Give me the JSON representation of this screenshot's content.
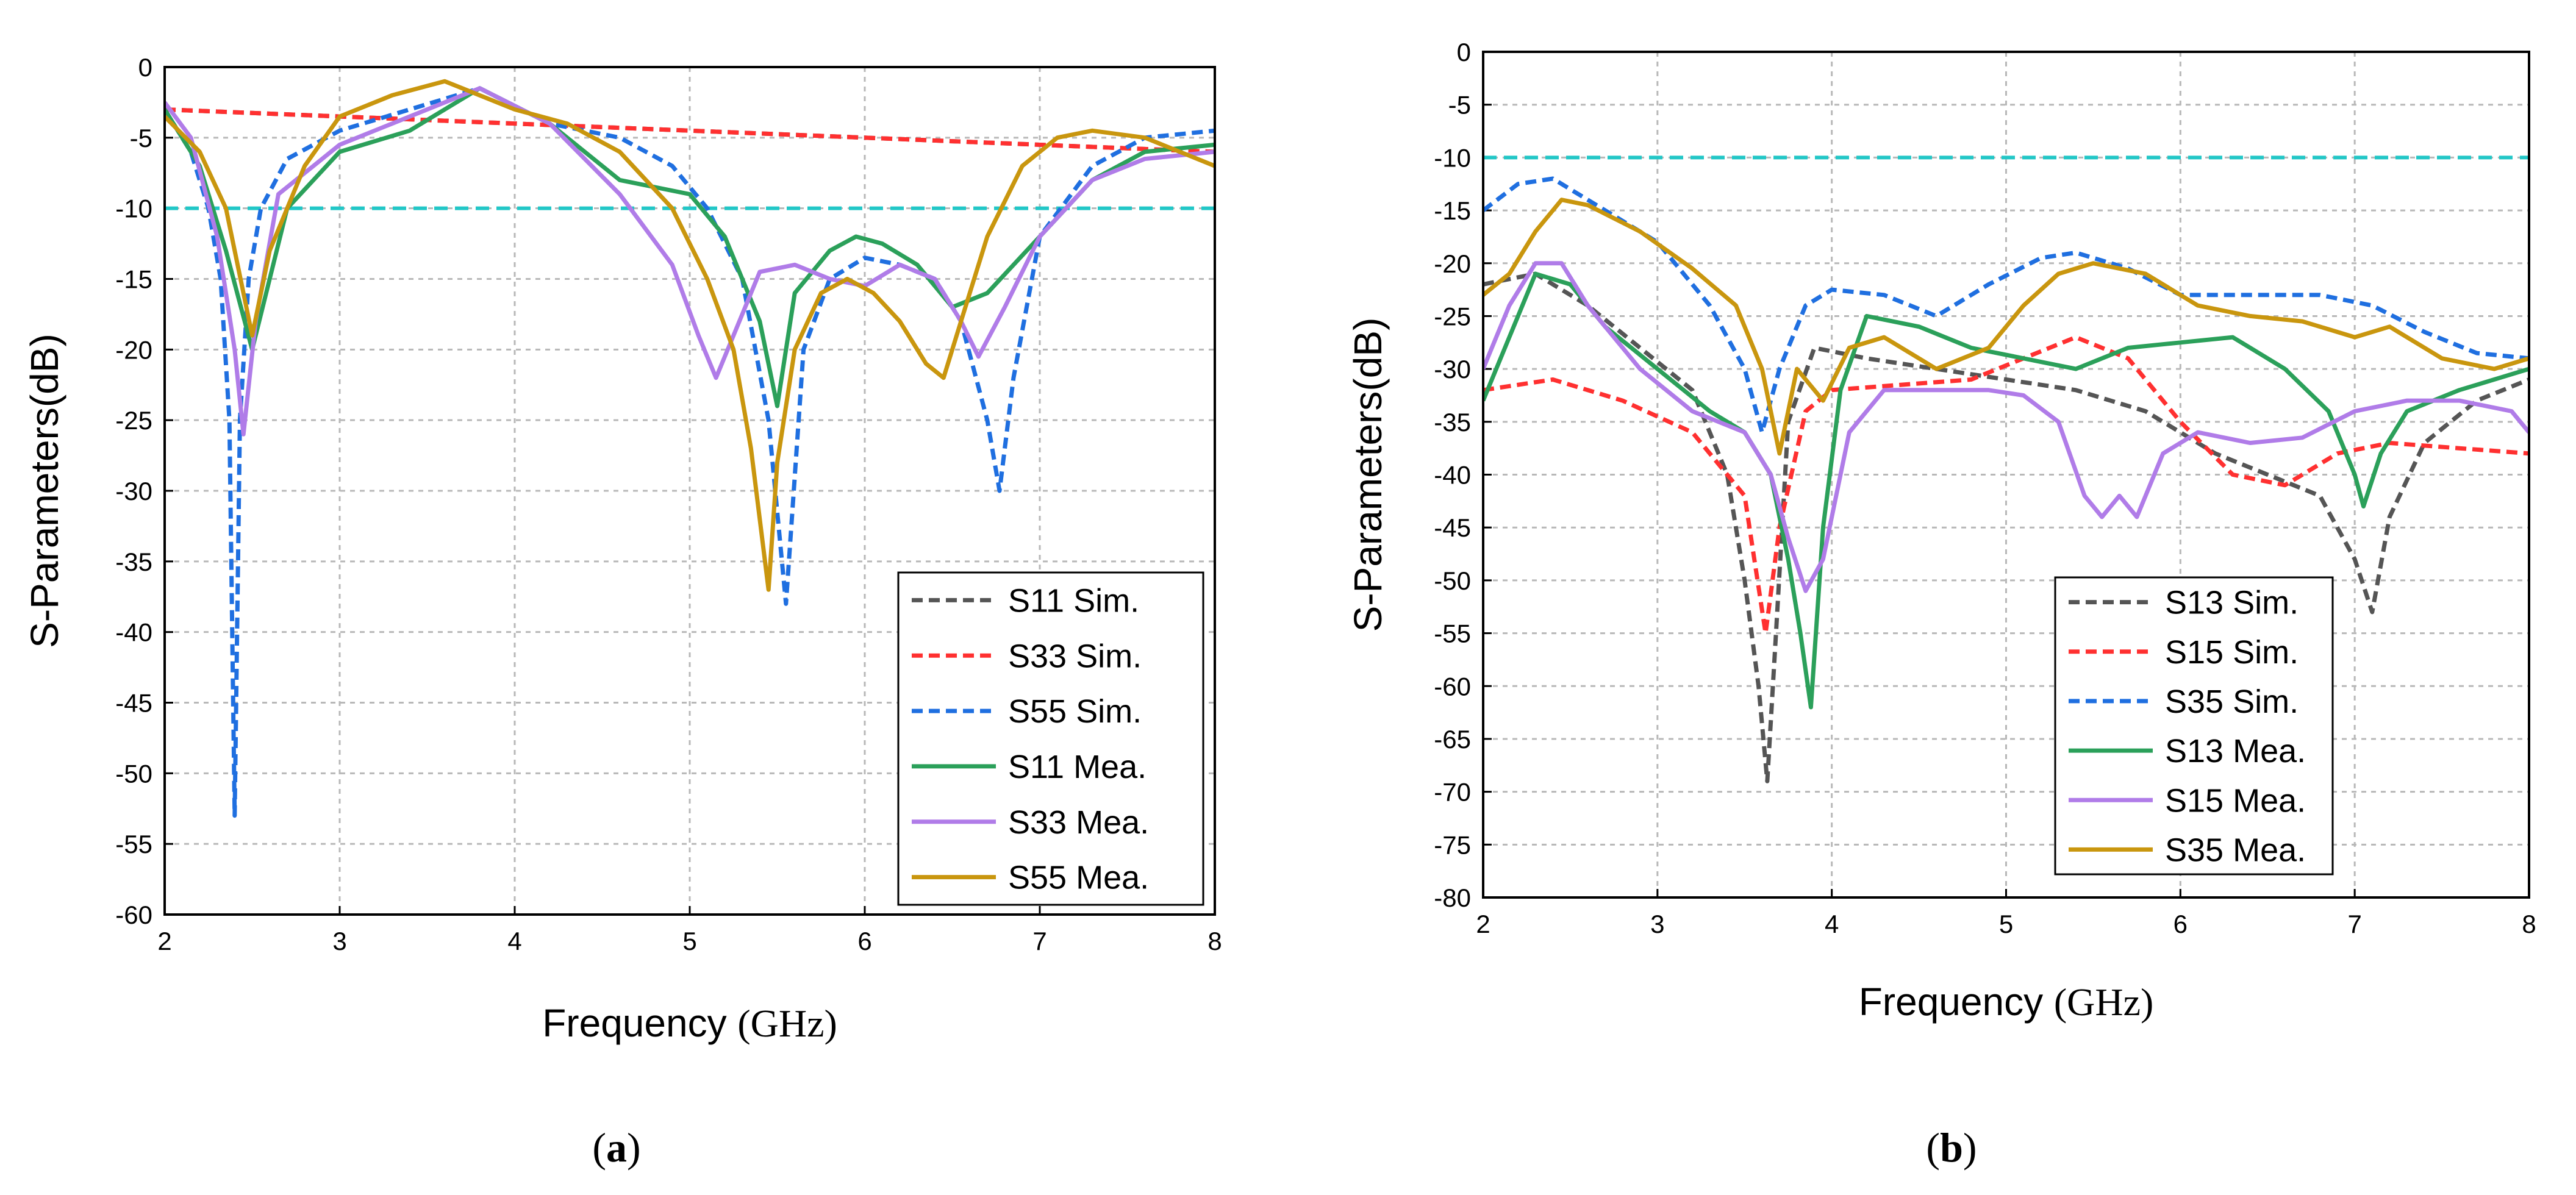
{
  "chart_data": [
    {
      "type": "line",
      "caption_open": "(",
      "caption_letter": "a",
      "caption_close": ")",
      "xlabel_main": "Frequency ",
      "xlabel_unit": "(GHz)",
      "ylabel": "S-Parameters(dB)",
      "xlim": [
        2,
        8
      ],
      "ylim": [
        -60,
        0
      ],
      "xticks": [
        "2",
        "3",
        "4",
        "5",
        "6",
        "7",
        "8"
      ],
      "yticks": [
        "0",
        "-5",
        "-10",
        "-15",
        "-20",
        "-25",
        "-30",
        "-35",
        "-40",
        "-45",
        "-50",
        "-55",
        "-60"
      ],
      "grid": true,
      "reference_line": -10,
      "reference_color": "#22c7c7",
      "legend_position": "bottom-right",
      "series": [
        {
          "name": "S11 Sim.",
          "color": "#555555",
          "dash": true,
          "x": [
            2,
            8
          ],
          "y": [
            -3,
            -6
          ]
        },
        {
          "name": "S33 Sim.",
          "color": "#ff3030",
          "dash": true,
          "x": [
            2,
            8
          ],
          "y": [
            -3,
            -6
          ]
        },
        {
          "name": "S55 Sim.",
          "color": "#1f6fe0",
          "dash": true,
          "x": [
            2,
            2.15,
            2.25,
            2.32,
            2.37,
            2.4,
            2.43,
            2.48,
            2.55,
            2.7,
            3.0,
            3.4,
            3.8,
            4.2,
            4.6,
            4.9,
            5.1,
            5.3,
            5.45,
            5.55,
            5.65,
            5.8,
            6.0,
            6.2,
            6.4,
            6.55,
            6.7,
            6.77,
            6.85,
            7.0,
            7.3,
            7.6,
            8.0
          ],
          "y": [
            -3,
            -6,
            -10,
            -15,
            -25,
            -53,
            -25,
            -15,
            -10,
            -6.5,
            -4.5,
            -3,
            -1.5,
            -4,
            -5,
            -7,
            -10,
            -15,
            -25,
            -38,
            -20,
            -15,
            -13.5,
            -14,
            -15,
            -18,
            -25,
            -30,
            -22,
            -12,
            -7,
            -5,
            -4.5
          ]
        },
        {
          "name": "S11 Mea.",
          "color": "#2ba05a",
          "dash": false,
          "x": [
            2,
            2.2,
            2.35,
            2.5,
            2.7,
            3.0,
            3.4,
            3.8,
            4.2,
            4.6,
            5.0,
            5.2,
            5.4,
            5.5,
            5.6,
            5.8,
            5.95,
            6.1,
            6.3,
            6.5,
            6.7,
            7.0,
            7.3,
            7.6,
            8.0
          ],
          "y": [
            -3,
            -7,
            -13,
            -20,
            -10,
            -6,
            -4.5,
            -1.5,
            -4,
            -8,
            -9,
            -12,
            -18,
            -24,
            -16,
            -13,
            -12,
            -12.5,
            -14,
            -17,
            -16,
            -12,
            -8,
            -6,
            -5.5
          ]
        },
        {
          "name": "S33 Mea.",
          "color": "#b07ce8",
          "dash": false,
          "x": [
            2,
            2.15,
            2.3,
            2.4,
            2.45,
            2.52,
            2.65,
            3.0,
            3.4,
            3.8,
            4.2,
            4.6,
            4.9,
            5.05,
            5.15,
            5.25,
            5.4,
            5.6,
            5.8,
            6.0,
            6.2,
            6.4,
            6.55,
            6.65,
            6.8,
            7.0,
            7.3,
            7.6,
            8.0
          ],
          "y": [
            -2.5,
            -5,
            -12,
            -20,
            -26,
            -18,
            -9,
            -5.5,
            -3.5,
            -1.5,
            -4,
            -9,
            -14,
            -19,
            -22,
            -19,
            -14.5,
            -14,
            -15,
            -15.5,
            -14,
            -15,
            -18,
            -20.5,
            -17,
            -12,
            -8,
            -6.5,
            -6
          ]
        },
        {
          "name": "S55 Mea.",
          "color": "#c9960e",
          "dash": false,
          "x": [
            2,
            2.2,
            2.35,
            2.45,
            2.5,
            2.6,
            2.8,
            3.0,
            3.3,
            3.6,
            4.0,
            4.3,
            4.6,
            4.9,
            5.1,
            5.25,
            5.35,
            5.45,
            5.5,
            5.6,
            5.75,
            5.9,
            6.05,
            6.2,
            6.35,
            6.45,
            6.55,
            6.7,
            6.9,
            7.1,
            7.3,
            7.6,
            8.0
          ],
          "y": [
            -3.5,
            -6,
            -10,
            -16,
            -19,
            -13,
            -7,
            -3.5,
            -2,
            -1,
            -3,
            -4,
            -6,
            -10,
            -15,
            -20,
            -27,
            -37,
            -28,
            -20,
            -16,
            -15,
            -16,
            -18,
            -21,
            -22,
            -18,
            -12,
            -7,
            -5,
            -4.5,
            -5,
            -7
          ]
        }
      ]
    },
    {
      "type": "line",
      "caption_open": "(",
      "caption_letter": "b",
      "caption_close": ")",
      "xlabel_main": "Frequency ",
      "xlabel_unit": "(GHz)",
      "ylabel": "S-Parameters(dB)",
      "xlim": [
        2,
        8
      ],
      "ylim": [
        -80,
        0
      ],
      "xticks": [
        "2",
        "3",
        "4",
        "5",
        "6",
        "7",
        "8"
      ],
      "yticks": [
        "0",
        "-5",
        "-10",
        "-15",
        "-20",
        "-25",
        "-30",
        "-35",
        "-40",
        "-45",
        "-50",
        "-55",
        "-60",
        "-65",
        "-70",
        "-75",
        "-80"
      ],
      "grid": true,
      "reference_line": -10,
      "reference_color": "#22c7c7",
      "legend_position": "bottom-left",
      "series": [
        {
          "name": "S13 Sim.",
          "color": "#555555",
          "dash": true,
          "x": [
            2,
            2.3,
            2.6,
            2.9,
            3.2,
            3.4,
            3.5,
            3.58,
            3.63,
            3.68,
            3.75,
            3.9,
            4.2,
            4.6,
            5.0,
            5.4,
            5.8,
            6.2,
            6.5,
            6.8,
            7.0,
            7.1,
            7.2,
            7.4,
            7.7,
            8.0
          ],
          "y": [
            -22,
            -21,
            -24,
            -28,
            -32,
            -40,
            -50,
            -60,
            -69,
            -55,
            -35,
            -28,
            -29,
            -30,
            -31,
            -32,
            -34,
            -38,
            -40,
            -42,
            -48,
            -53,
            -44,
            -37,
            -33,
            -31
          ]
        },
        {
          "name": "S15 Sim.",
          "color": "#ff3030",
          "dash": true,
          "x": [
            2,
            2.4,
            2.8,
            3.2,
            3.5,
            3.62,
            3.7,
            3.85,
            4.0,
            4.4,
            4.8,
            5.1,
            5.4,
            5.7,
            6.0,
            6.3,
            6.6,
            6.9,
            7.2,
            7.6,
            8.0
          ],
          "y": [
            -32,
            -31,
            -33,
            -36,
            -42,
            -55,
            -45,
            -34,
            -32,
            -31.5,
            -31,
            -29,
            -27,
            -29,
            -35,
            -40,
            -41,
            -38,
            -37,
            -37.5,
            -38
          ]
        },
        {
          "name": "S35 Sim.",
          "color": "#1f6fe0",
          "dash": true,
          "x": [
            2,
            2.2,
            2.4,
            2.7,
            3.0,
            3.3,
            3.5,
            3.6,
            3.7,
            3.85,
            4.0,
            4.3,
            4.6,
            4.9,
            5.2,
            5.4,
            5.7,
            6.0,
            6.4,
            6.8,
            7.1,
            7.4,
            7.7,
            8.0
          ],
          "y": [
            -15,
            -12.5,
            -12,
            -15,
            -18,
            -24,
            -30,
            -36,
            -30,
            -24,
            -22.5,
            -23,
            -25,
            -22,
            -19.5,
            -19,
            -20.5,
            -23,
            -23,
            -23,
            -24,
            -26.5,
            -28.5,
            -29
          ]
        },
        {
          "name": "S13 Mea.",
          "color": "#2ba05a",
          "dash": false,
          "x": [
            2,
            2.15,
            2.3,
            2.5,
            2.7,
            3.0,
            3.3,
            3.5,
            3.65,
            3.75,
            3.82,
            3.88,
            3.95,
            4.05,
            4.2,
            4.5,
            4.8,
            5.1,
            5.4,
            5.7,
            6.0,
            6.3,
            6.6,
            6.85,
            7.0,
            7.05,
            7.15,
            7.3,
            7.6,
            8.0
          ],
          "y": [
            -33,
            -27,
            -21,
            -22,
            -26,
            -30,
            -34,
            -36,
            -40,
            -48,
            -55,
            -62,
            -45,
            -32,
            -25,
            -26,
            -28,
            -29,
            -30,
            -28,
            -27.5,
            -27,
            -30,
            -34,
            -40,
            -43,
            -38,
            -34,
            -32,
            -30
          ]
        },
        {
          "name": "S15 Mea.",
          "color": "#b07ce8",
          "dash": false,
          "x": [
            2,
            2.15,
            2.3,
            2.45,
            2.6,
            2.9,
            3.2,
            3.5,
            3.65,
            3.75,
            3.85,
            3.95,
            4.1,
            4.3,
            4.6,
            4.9,
            5.1,
            5.3,
            5.45,
            5.55,
            5.65,
            5.75,
            5.9,
            6.1,
            6.4,
            6.7,
            7.0,
            7.3,
            7.6,
            7.9,
            8.0
          ],
          "y": [
            -30,
            -24,
            -20,
            -20,
            -24,
            -30,
            -34,
            -36,
            -40,
            -46,
            -51,
            -48,
            -36,
            -32,
            -32,
            -32,
            -32.5,
            -35,
            -42,
            -44,
            -42,
            -44,
            -38,
            -36,
            -37,
            -36.5,
            -34,
            -33,
            -33,
            -34,
            -36
          ]
        },
        {
          "name": "S35 Mea.",
          "color": "#c9960e",
          "dash": false,
          "x": [
            2,
            2.15,
            2.3,
            2.45,
            2.6,
            2.9,
            3.2,
            3.45,
            3.6,
            3.7,
            3.8,
            3.95,
            4.1,
            4.3,
            4.6,
            4.9,
            5.1,
            5.3,
            5.5,
            5.8,
            6.1,
            6.4,
            6.7,
            7.0,
            7.2,
            7.5,
            7.8,
            8.0
          ],
          "y": [
            -23,
            -21,
            -17,
            -14,
            -14.5,
            -17,
            -20.5,
            -24,
            -30,
            -38,
            -30,
            -33,
            -28,
            -27,
            -30,
            -28,
            -24,
            -21,
            -20,
            -21,
            -24,
            -25,
            -25.5,
            -27,
            -26,
            -29,
            -30,
            -29
          ]
        }
      ]
    }
  ]
}
